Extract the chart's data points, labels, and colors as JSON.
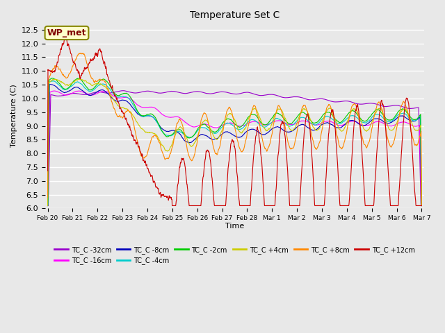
{
  "title": "Temperature Set C",
  "xlabel": "Time",
  "ylabel": "Temperature (C)",
  "ylim": [
    6.0,
    12.75
  ],
  "yticks": [
    6.0,
    6.5,
    7.0,
    7.5,
    8.0,
    8.5,
    9.0,
    9.5,
    10.0,
    10.5,
    11.0,
    11.5,
    12.0,
    12.5
  ],
  "xtick_labels": [
    "Feb 20",
    "Feb 21",
    "Feb 22",
    "Feb 23",
    "Feb 24",
    "Feb 25",
    "Feb 26",
    "Feb 27",
    "Feb 28",
    "Mar 1",
    "Mar 2",
    "Mar 3",
    "Mar 4",
    "Mar 5",
    "Mar 6",
    "Mar 7"
  ],
  "wp_met_label": "WP_met",
  "wp_met_color": "#800000",
  "wp_met_bg": "#ffffcc",
  "series_labels": [
    "TC_C -32cm",
    "TC_C -16cm",
    "TC_C -8cm",
    "TC_C -4cm",
    "TC_C -2cm",
    "TC_C +4cm",
    "TC_C +8cm",
    "TC_C +12cm"
  ],
  "series_colors": [
    "#9900cc",
    "#ff00ff",
    "#0000bb",
    "#00cccc",
    "#00cc00",
    "#cccc00",
    "#ff8800",
    "#cc0000"
  ],
  "background_color": "#e8e8e8",
  "plot_bg_color": "#e8e8e8",
  "grid_color": "#ffffff",
  "n_points": 1500
}
